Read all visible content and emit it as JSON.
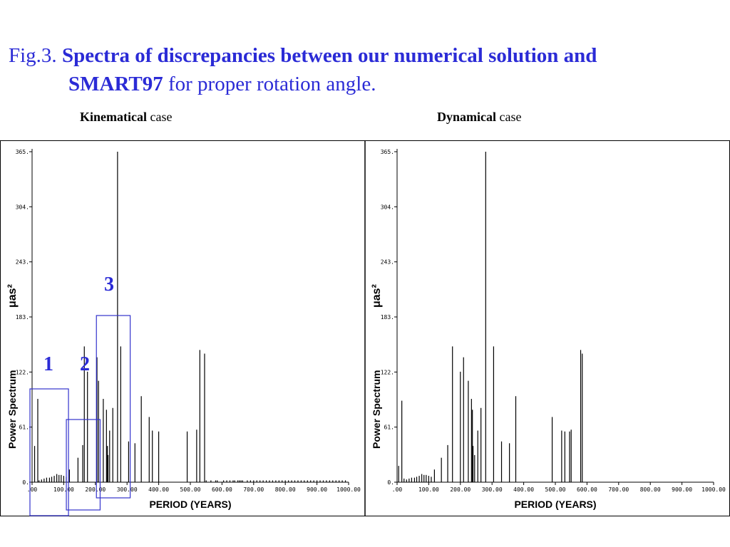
{
  "title": {
    "prefix": "Fig.3. ",
    "bold1": "Spectra of discrepancies between our numerical solution and",
    "bold2": "SMART97",
    "rest": " for proper rotation angle."
  },
  "panels": [
    {
      "bold": "Kinematical",
      "rest": " case"
    },
    {
      "bold": "Dynamical",
      "rest": " case"
    }
  ],
  "annotations": {
    "box_labels": [
      "1",
      "2",
      "3"
    ],
    "box_ranges": [
      [
        0,
        115
      ],
      [
        115,
        215
      ],
      [
        210,
        310
      ]
    ],
    "box_color": "#3333cc"
  },
  "colors": {
    "title": "#2b2bd6",
    "bars": "#000000",
    "boxes": "#3333cc"
  },
  "chart_data": [
    {
      "type": "bar",
      "panel": "Kinematical case",
      "xlabel": "PERIOD (YEARS)",
      "ylabel": "Power Spectrum",
      "ylabel_unit": "μas²",
      "xlim": [
        0,
        1000
      ],
      "ylim": [
        0,
        365
      ],
      "x_ticks": [
        ".00",
        "100.00",
        "200.00",
        "300.00",
        "400.00",
        "500.00",
        "600.00",
        "700.00",
        "800.00",
        "900.00",
        "1000.00"
      ],
      "y_ticks": [
        "0.",
        "61.",
        "122.",
        "183.",
        "243.",
        "304.",
        "365."
      ],
      "x": [
        8,
        18,
        22,
        30,
        38,
        46,
        55,
        62,
        70,
        78,
        85,
        92,
        100,
        108,
        118,
        145,
        160,
        165,
        175,
        205,
        210,
        225,
        235,
        238,
        240,
        245,
        255,
        270,
        280,
        305,
        325,
        345,
        370,
        380,
        400,
        490,
        520,
        530,
        545,
        550,
        565,
        580,
        585,
        605,
        615,
        625,
        635,
        640,
        650,
        655,
        660,
        665,
        680,
        690,
        700,
        710,
        720,
        730,
        740,
        750,
        760,
        770,
        780,
        790,
        800,
        810,
        820,
        830,
        840,
        850,
        860,
        870,
        880,
        890,
        900,
        910,
        920,
        930,
        940,
        950,
        960,
        970,
        980,
        990
      ],
      "values": [
        40,
        92,
        2,
        3,
        4,
        5,
        5,
        6,
        7,
        9,
        8,
        8,
        7,
        6,
        14,
        27,
        41,
        150,
        122,
        138,
        112,
        92,
        80,
        40,
        30,
        57,
        82,
        365,
        150,
        45,
        43,
        95,
        72,
        57,
        56,
        56,
        58,
        146,
        142,
        2,
        2,
        2,
        2,
        2,
        2,
        2,
        2,
        2,
        2,
        2,
        2,
        2,
        2,
        2,
        2,
        2,
        2,
        2,
        2,
        2,
        2,
        2,
        2,
        2,
        2,
        2,
        2,
        2,
        2,
        2,
        2,
        2,
        2,
        2,
        2,
        2,
        2,
        2,
        2,
        2,
        2,
        2,
        2,
        2
      ]
    },
    {
      "type": "bar",
      "panel": "Dynamical case",
      "xlabel": "PERIOD (YEARS)",
      "ylabel": "Power Spectrum",
      "ylabel_unit": "μas²",
      "xlim": [
        0,
        1000
      ],
      "ylim": [
        0,
        365
      ],
      "x_ticks": [
        ".00",
        "100.00",
        "200.00",
        "300.00",
        "400.00",
        "500.00",
        "600.00",
        "700.00",
        "800.00",
        "900.00",
        "1000.00"
      ],
      "y_ticks": [
        "0.",
        "61.",
        "122.",
        "183.",
        "243.",
        "304.",
        "365."
      ],
      "x": [
        5,
        15,
        22,
        30,
        38,
        46,
        55,
        62,
        70,
        78,
        85,
        92,
        100,
        108,
        118,
        140,
        160,
        175,
        200,
        210,
        225,
        235,
        238,
        240,
        245,
        255,
        265,
        280,
        305,
        330,
        355,
        375,
        490,
        520,
        530,
        545,
        550,
        580,
        585
      ],
      "values": [
        18,
        90,
        4,
        3,
        4,
        5,
        5,
        6,
        7,
        9,
        8,
        8,
        7,
        6,
        14,
        27,
        41,
        150,
        122,
        138,
        112,
        92,
        80,
        40,
        30,
        57,
        82,
        365,
        150,
        45,
        43,
        95,
        72,
        57,
        56,
        56,
        58,
        146,
        142
      ]
    }
  ]
}
